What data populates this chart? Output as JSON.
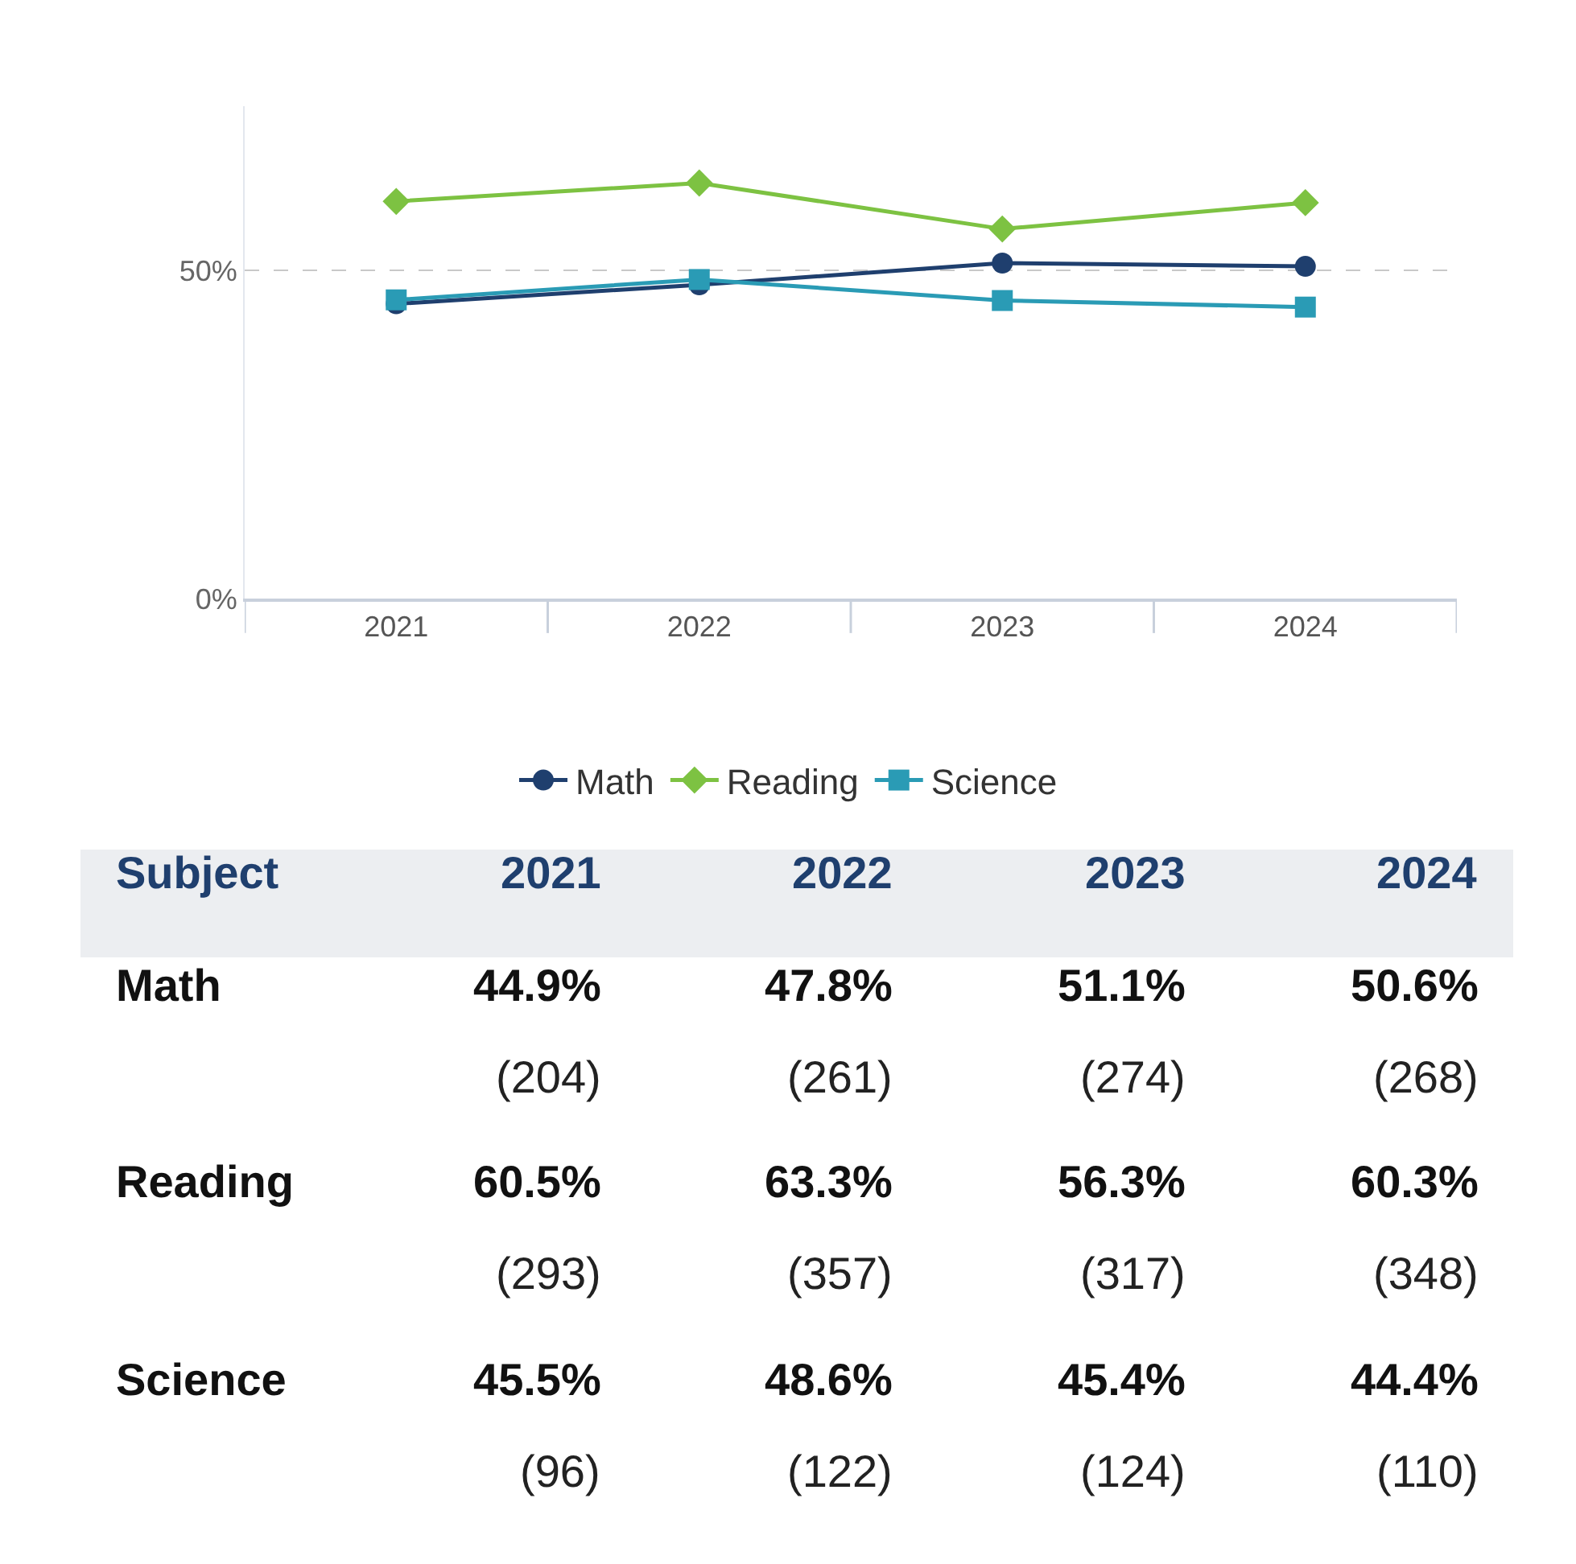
{
  "chart_data": {
    "type": "line",
    "categories": [
      "2021",
      "2022",
      "2023",
      "2024"
    ],
    "series": [
      {
        "name": "Math",
        "color": "#1f3f6e",
        "marker": "circle",
        "values": [
          44.9,
          47.8,
          51.1,
          50.6
        ],
        "value_labels": [
          "44.9%\n(204)",
          "47.8%\n(261)",
          "51.1%\n(274)",
          "50.6%\n(268)"
        ]
      },
      {
        "name": "Reading",
        "color": "#7dc242",
        "marker": "diamond",
        "values": [
          60.5,
          63.3,
          56.3,
          60.3
        ],
        "value_labels": [
          "60.5%\n(293)",
          "63.3%\n(357)",
          "56.3%\n(317)",
          "60.3%\n(348)"
        ]
      },
      {
        "name": "Science",
        "color": "#2a9bb5",
        "marker": "square",
        "values": [
          45.5,
          48.6,
          45.4,
          44.4
        ],
        "value_labels": [
          "45.5%\n(96)",
          "48.6%\n(122)",
          "45.4%\n(124)",
          "44.4%\n(110)"
        ]
      }
    ],
    "ylim": [
      0,
      75
    ],
    "yticks": [
      {
        "value": 0,
        "label": "0%"
      },
      {
        "value": 50,
        "label": "50%"
      }
    ],
    "grid": "y",
    "legend": "bottom",
    "line_style": "solid",
    "annotations": [
      "Subject"
    ]
  }
}
